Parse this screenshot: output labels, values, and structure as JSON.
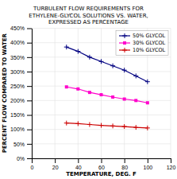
{
  "chart_data": {
    "type": "line",
    "title": "TURBULENT FLOW REQUIREMENTS FOR\nETHYLENE-GLYCOL SOLUTIONS VS. WATER,\nEXPRESSED AS PERCENTAGE",
    "x_label": "TEMPERATURE, DEG. F",
    "y_label": "PERCENT FLOW COMPARED TO WATER",
    "x": [
      30,
      40,
      50,
      60,
      70,
      80,
      90,
      100
    ],
    "series": [
      {
        "name": "50% GLYCOL",
        "color": "#000080",
        "marker": "plus",
        "values": [
          385,
          370,
          350,
          335,
          320,
          305,
          285,
          265
        ]
      },
      {
        "name": "30% GLYCOL",
        "color": "#FF00CC",
        "marker": "square",
        "values": [
          247,
          240,
          228,
          220,
          212,
          205,
          200,
          192
        ]
      },
      {
        "name": "10% GLYCOL",
        "color": "#CC0000",
        "marker": "plus",
        "values": [
          122,
          120,
          117,
          114,
          112,
          110,
          107,
          105
        ]
      }
    ],
    "xlim": [
      0,
      120
    ],
    "xticks": [
      0,
      20,
      40,
      60,
      80,
      100,
      120
    ],
    "ylim": [
      0,
      450
    ],
    "yticks": [
      {
        "value": 0,
        "label": "0%"
      },
      {
        "value": 50,
        "label": "50%"
      },
      {
        "value": 100,
        "label": "100%"
      },
      {
        "value": 150,
        "label": "150%"
      },
      {
        "value": 200,
        "label": "200%"
      },
      {
        "value": 250,
        "label": "250%"
      },
      {
        "value": 300,
        "label": "300%"
      },
      {
        "value": 350,
        "label": "350%"
      },
      {
        "value": 400,
        "label": "400%"
      },
      {
        "value": 450,
        "label": "450%"
      }
    ],
    "grid": true,
    "legend": "upper right"
  }
}
